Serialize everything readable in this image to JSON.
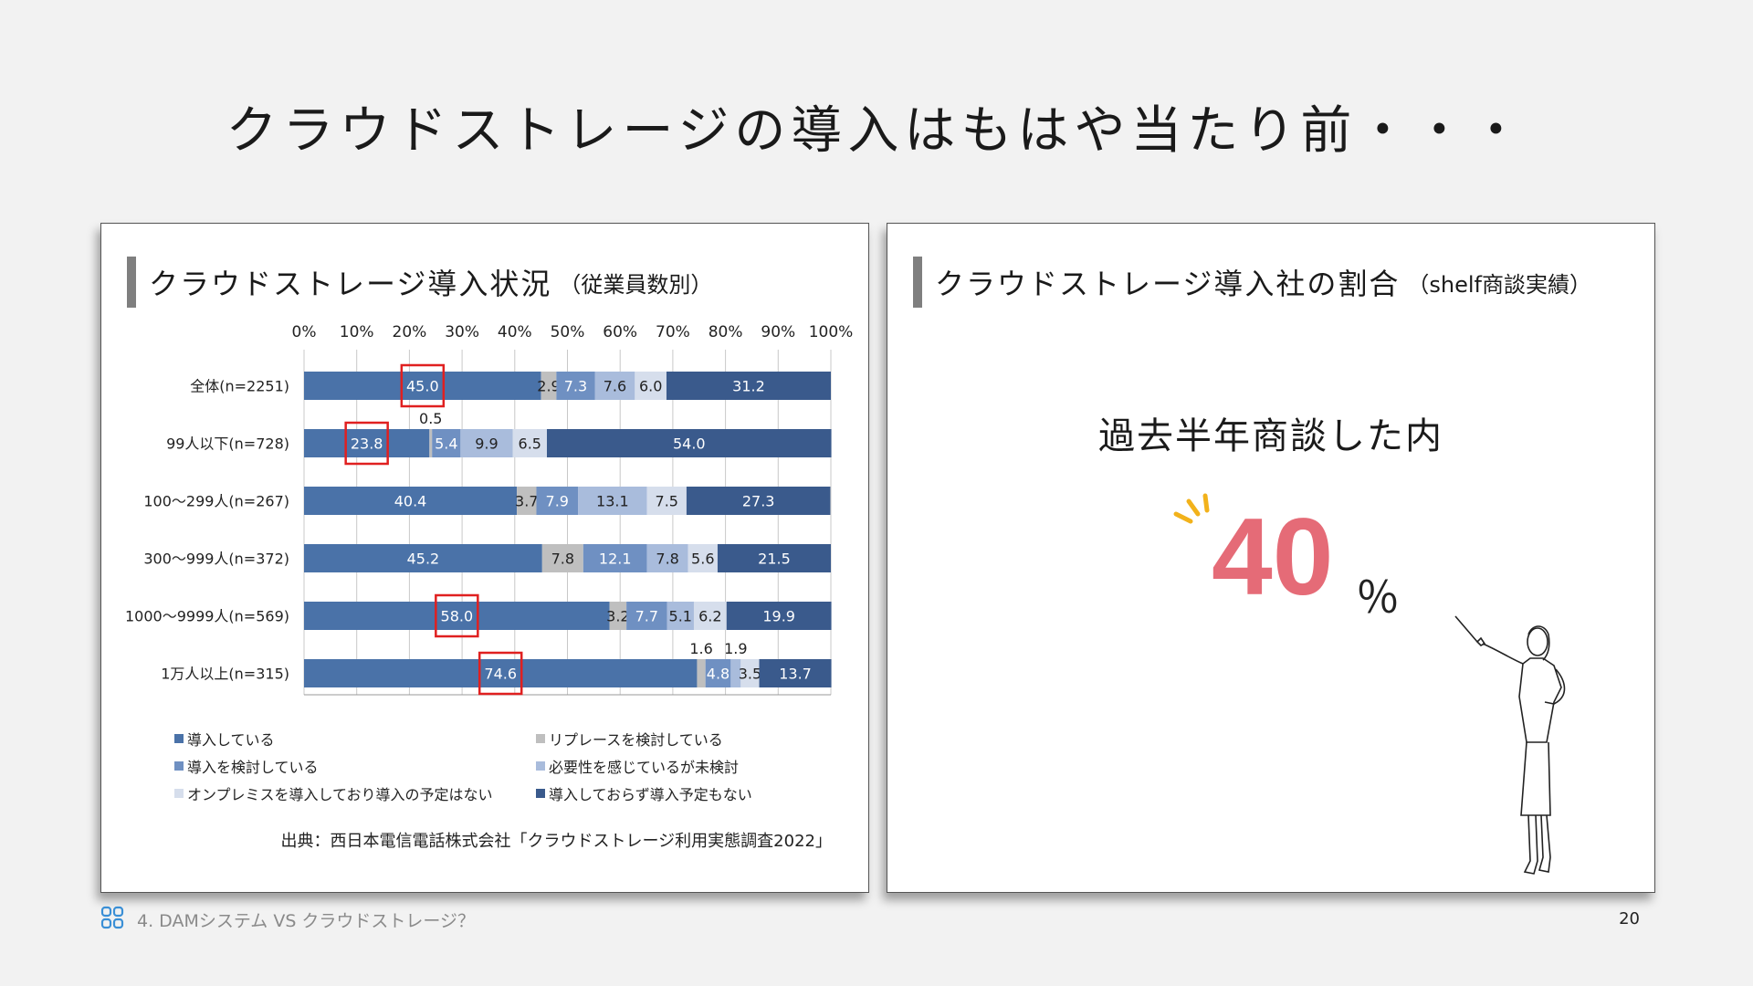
{
  "slide": {
    "title": "クラウドストレージの導入はもはや当たり前・・・",
    "footer_text": "4. DAMシステム VS クラウドストレージ？",
    "page_number": "20"
  },
  "left_panel": {
    "heading": "クラウドストレージ導入状況",
    "heading_sub": "（従業員数別）",
    "source": "出典：西日本電信電話株式会社「クラウドストレージ利用実態調査2022」"
  },
  "right_panel": {
    "heading": "クラウドストレージ導入社の割合",
    "heading_sub": "（shelf商談実績）",
    "caption": "過去半年商談した内",
    "value": "40",
    "unit": "％",
    "accent_color": "#e56b77"
  },
  "chart_data": {
    "type": "bar",
    "orientation": "horizontal-stacked-100",
    "x_ticks": [
      "0%",
      "10%",
      "20%",
      "30%",
      "40%",
      "50%",
      "60%",
      "70%",
      "80%",
      "90%",
      "100%"
    ],
    "xlim": [
      0,
      100
    ],
    "legend_position": "bottom",
    "categories": [
      "全体(n=2251)",
      "99人以下(n=728)",
      "100～299人(n=267)",
      "300～999人(n=372)",
      "1000～9999人(n=569)",
      "1万人以上(n=315)"
    ],
    "series": [
      {
        "name": "導入している",
        "color": "#4a72a8",
        "values": [
          45.0,
          23.8,
          40.4,
          45.2,
          58.0,
          74.6
        ]
      },
      {
        "name": "リプレースを検討している",
        "color": "#bfbfbf",
        "values": [
          2.9,
          0.5,
          3.7,
          7.8,
          3.2,
          1.6
        ]
      },
      {
        "name": "導入を検討している",
        "color": "#6f90c2",
        "values": [
          7.3,
          5.4,
          7.9,
          12.1,
          7.7,
          4.8
        ]
      },
      {
        "name": "必要性を感じているが未検討",
        "color": "#a9bcdc",
        "values": [
          7.6,
          9.9,
          13.1,
          7.8,
          5.1,
          1.9
        ]
      },
      {
        "name": "オンプレミスを導入しており導入の予定はない",
        "color": "#d6deec",
        "values": [
          6.0,
          6.5,
          7.5,
          5.6,
          6.2,
          3.5
        ]
      },
      {
        "name": "導入しておらず導入予定もない",
        "color": "#3a5a8c",
        "values": [
          31.2,
          54.0,
          27.3,
          21.5,
          19.9,
          13.7
        ]
      }
    ],
    "data_labels": [
      [
        "45.0",
        "2.9",
        "7.3",
        "7.6",
        "6.0",
        "31.2"
      ],
      [
        "23.8",
        "0.5",
        "5.4",
        "9.9",
        "6.5",
        "54.0"
      ],
      [
        "40.4",
        "3.7",
        "7.9",
        "13.1",
        "7.5",
        "27.3"
      ],
      [
        "45.2",
        "7.8",
        "12.1",
        "7.8",
        "5.6",
        "21.5"
      ],
      [
        "58.0",
        "3.2",
        "7.7",
        "5.1",
        "6.2",
        "19.9"
      ],
      [
        "74.6",
        "1.6",
        "4.8",
        "1.9",
        "3.5",
        "13.7"
      ]
    ],
    "highlighted": [
      "45.0",
      "23.8",
      "58.0",
      "74.6"
    ]
  }
}
